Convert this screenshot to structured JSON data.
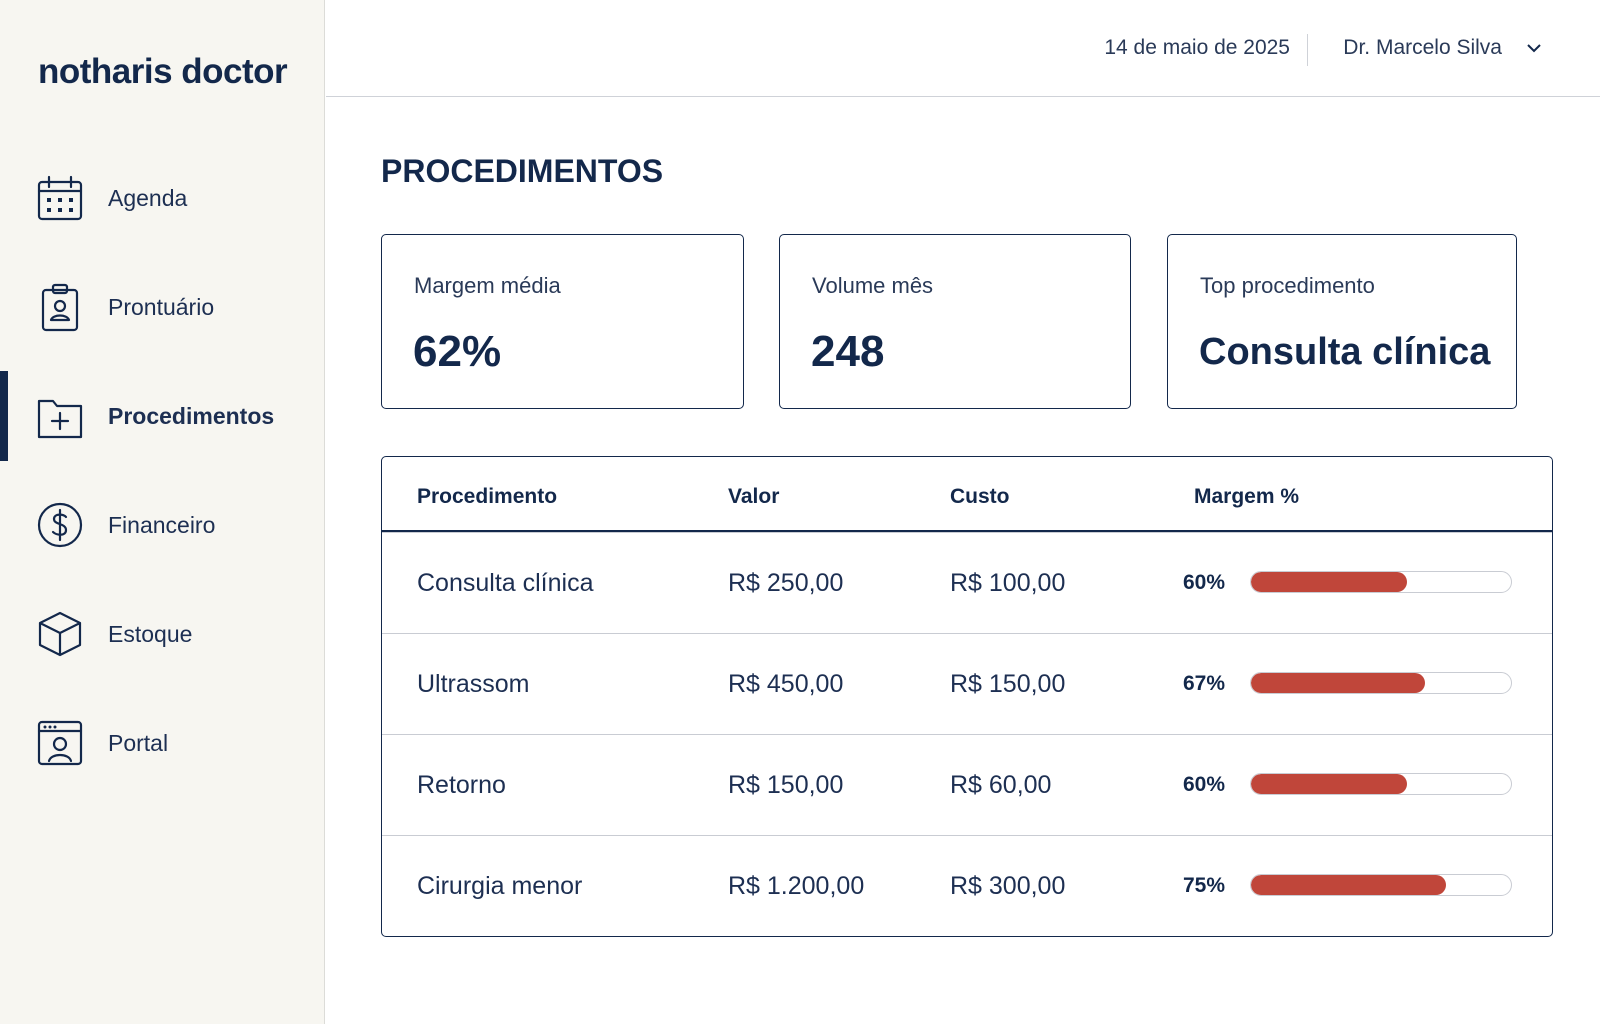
{
  "sidebar": {
    "brand": "notharis doctor",
    "nav": [
      {
        "label": "Agenda",
        "active": false
      },
      {
        "label": "Prontuário",
        "active": false
      },
      {
        "label": "Procedimentos",
        "active": true
      },
      {
        "label": "Financeiro",
        "active": false
      },
      {
        "label": "Estoque",
        "active": false
      },
      {
        "label": "Portal",
        "active": false
      }
    ]
  },
  "header": {
    "date": "14 de maio de 2025",
    "user": "Dr. Marcelo Silva"
  },
  "page": {
    "title": "PROCEDIMENTOS",
    "kpis": [
      {
        "label": "Margem média",
        "value": "62%"
      },
      {
        "label": "Volume mês",
        "value": "248"
      },
      {
        "label": "Top procedimento",
        "value": "Consulta clínica"
      }
    ],
    "table": {
      "columns": [
        "Procedimento",
        "Valor",
        "Custo",
        "Margem %"
      ],
      "margin_range": [
        0,
        100
      ],
      "rows": [
        {
          "name": "Consulta clínica",
          "price": "R$ 250,00",
          "cost": "R$ 100,00",
          "margin": {
            "value": 60,
            "label": "60%"
          }
        },
        {
          "name": "Ultrassom",
          "price": "R$ 450,00",
          "cost": "R$ 150,00",
          "margin": {
            "value": 67,
            "label": "67%"
          }
        },
        {
          "name": "Retorno",
          "price": "R$ 150,00",
          "cost": "R$ 60,00",
          "margin": {
            "value": 60,
            "label": "60%"
          }
        },
        {
          "name": "Cirurgia menor",
          "price": "R$ 1.200,00",
          "cost": "R$ 300,00",
          "margin": {
            "value": 75,
            "label": "75%"
          }
        }
      ]
    }
  }
}
